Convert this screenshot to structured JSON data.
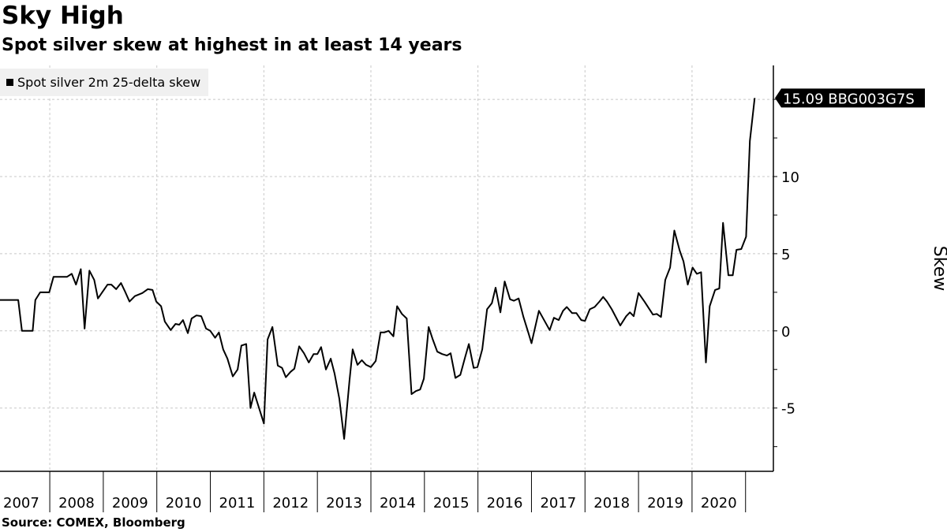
{
  "title": "Sky High",
  "subtitle": "Spot silver skew at highest in at least 14 years",
  "source": "Source: COMEX, Bloomberg",
  "chart_data": {
    "type": "line",
    "title": "Sky High",
    "subtitle": "Spot silver skew at highest in at least 14 years",
    "xlabel": "",
    "ylabel": "Skew",
    "legend": {
      "position": "top-left",
      "entries": [
        "Spot silver 2m 25-delta skew"
      ]
    },
    "last_value_label": "15.09 BBG003G7S",
    "xlim": [
      2007.07,
      2021.52
    ],
    "ylim": [
      -9.1,
      17.2
    ],
    "y_ticks": [
      -5,
      0,
      5,
      10
    ],
    "y_tick_labels": [
      "-5",
      "0",
      "5",
      "10"
    ],
    "y_gridlines": [
      -5,
      0,
      5,
      10,
      15
    ],
    "x_gridlines": [
      2008,
      2010,
      2012,
      2014,
      2016,
      2018,
      2020
    ],
    "x_tick_labels": [
      "2007",
      "2008",
      "2009",
      "2010",
      "2011",
      "2012",
      "2013",
      "2014",
      "2015",
      "2016",
      "2017",
      "2018",
      "2019",
      "2020"
    ],
    "grid": true,
    "line_color": "#000000",
    "series": [
      {
        "name": "Spot silver 2m 25-delta skew",
        "points": [
          [
            2007.07,
            2.0
          ],
          [
            2007.41,
            2.0
          ],
          [
            2007.48,
            0
          ],
          [
            2007.68,
            0
          ],
          [
            2007.73,
            2.0
          ],
          [
            2007.82,
            2.5
          ],
          [
            2007.99,
            2.5
          ],
          [
            2008.07,
            3.5
          ],
          [
            2008.32,
            3.5
          ],
          [
            2008.41,
            3.7
          ],
          [
            2008.49,
            3.0
          ],
          [
            2008.58,
            4.0
          ],
          [
            2008.65,
            0.15
          ],
          [
            2008.74,
            3.9
          ],
          [
            2008.83,
            3.3
          ],
          [
            2008.9,
            2.1
          ],
          [
            2009.08,
            3.0
          ],
          [
            2009.15,
            3.0
          ],
          [
            2009.24,
            2.7
          ],
          [
            2009.33,
            3.1
          ],
          [
            2009.4,
            2.6
          ],
          [
            2009.49,
            1.9
          ],
          [
            2009.59,
            2.25
          ],
          [
            2009.73,
            2.45
          ],
          [
            2009.83,
            2.7
          ],
          [
            2009.92,
            2.65
          ],
          [
            2009.99,
            1.9
          ],
          [
            2010.08,
            1.6
          ],
          [
            2010.15,
            0.6
          ],
          [
            2010.26,
            0.05
          ],
          [
            2010.35,
            0.45
          ],
          [
            2010.42,
            0.4
          ],
          [
            2010.49,
            0.7
          ],
          [
            2010.58,
            -0.15
          ],
          [
            2010.65,
            0.8
          ],
          [
            2010.74,
            1.0
          ],
          [
            2010.83,
            0.95
          ],
          [
            2010.92,
            0.15
          ],
          [
            2011.0,
            0
          ],
          [
            2011.09,
            -0.45
          ],
          [
            2011.16,
            -0.1
          ],
          [
            2011.24,
            -1.2
          ],
          [
            2011.32,
            -1.8
          ],
          [
            2011.42,
            -2.95
          ],
          [
            2011.51,
            -2.5
          ],
          [
            2011.58,
            -0.95
          ],
          [
            2011.67,
            -0.85
          ],
          [
            2011.75,
            -5.0
          ],
          [
            2011.82,
            -4.0
          ],
          [
            2012.0,
            -6.0
          ],
          [
            2012.07,
            -0.55
          ],
          [
            2012.16,
            0.25
          ],
          [
            2012.26,
            -2.25
          ],
          [
            2012.34,
            -2.4
          ],
          [
            2012.41,
            -3.0
          ],
          [
            2012.5,
            -2.65
          ],
          [
            2012.57,
            -2.45
          ],
          [
            2012.66,
            -1.0
          ],
          [
            2012.75,
            -1.45
          ],
          [
            2012.84,
            -2.05
          ],
          [
            2012.93,
            -1.5
          ],
          [
            2013.0,
            -1.5
          ],
          [
            2013.07,
            -1.05
          ],
          [
            2013.16,
            -2.5
          ],
          [
            2013.25,
            -1.8
          ],
          [
            2013.32,
            -2.75
          ],
          [
            2013.41,
            -4.4
          ],
          [
            2013.5,
            -7.0
          ],
          [
            2013.6,
            -3.2
          ],
          [
            2013.66,
            -1.2
          ],
          [
            2013.75,
            -2.2
          ],
          [
            2013.83,
            -1.9
          ],
          [
            2013.91,
            -2.2
          ],
          [
            2014.0,
            -2.35
          ],
          [
            2014.09,
            -1.95
          ],
          [
            2014.18,
            -0.1
          ],
          [
            2014.25,
            -0.1
          ],
          [
            2014.33,
            0
          ],
          [
            2014.42,
            -0.35
          ],
          [
            2014.49,
            1.6
          ],
          [
            2014.58,
            1.1
          ],
          [
            2014.67,
            0.8
          ],
          [
            2014.76,
            -4.1
          ],
          [
            2014.84,
            -3.9
          ],
          [
            2014.92,
            -3.8
          ],
          [
            2014.99,
            -3.1
          ],
          [
            2015.08,
            0.25
          ],
          [
            2015.15,
            -0.5
          ],
          [
            2015.24,
            -1.35
          ],
          [
            2015.33,
            -1.5
          ],
          [
            2015.42,
            -1.6
          ],
          [
            2015.49,
            -1.45
          ],
          [
            2015.58,
            -3.05
          ],
          [
            2015.67,
            -2.85
          ],
          [
            2015.76,
            -1.7
          ],
          [
            2015.83,
            -0.85
          ],
          [
            2015.92,
            -2.4
          ],
          [
            2015.99,
            -2.35
          ],
          [
            2016.08,
            -1.2
          ],
          [
            2016.17,
            1.4
          ],
          [
            2016.26,
            1.8
          ],
          [
            2016.33,
            2.8
          ],
          [
            2016.42,
            1.2
          ],
          [
            2016.5,
            3.2
          ],
          [
            2016.6,
            2.05
          ],
          [
            2016.67,
            1.95
          ],
          [
            2016.76,
            2.1
          ],
          [
            2016.85,
            0.9
          ],
          [
            2016.94,
            -0.1
          ],
          [
            2017.0,
            -0.8
          ],
          [
            2017.14,
            1.3
          ],
          [
            2017.34,
            0.05
          ],
          [
            2017.42,
            0.85
          ],
          [
            2017.51,
            0.7
          ],
          [
            2017.59,
            1.3
          ],
          [
            2017.66,
            1.55
          ],
          [
            2017.76,
            1.15
          ],
          [
            2017.84,
            1.15
          ],
          [
            2017.93,
            0.7
          ],
          [
            2018.0,
            0.65
          ],
          [
            2018.09,
            1.4
          ],
          [
            2018.18,
            1.55
          ],
          [
            2018.27,
            1.9
          ],
          [
            2018.34,
            2.2
          ],
          [
            2018.41,
            1.9
          ],
          [
            2018.5,
            1.4
          ],
          [
            2018.66,
            0.35
          ],
          [
            2018.77,
            0.95
          ],
          [
            2018.84,
            1.2
          ],
          [
            2018.91,
            0.95
          ],
          [
            2019.0,
            2.45
          ],
          [
            2019.11,
            1.9
          ],
          [
            2019.27,
            1.05
          ],
          [
            2019.34,
            1.1
          ],
          [
            2019.42,
            0.9
          ],
          [
            2019.5,
            3.3
          ],
          [
            2019.59,
            4.1
          ],
          [
            2019.67,
            6.5
          ],
          [
            2019.77,
            5.2
          ],
          [
            2019.84,
            4.5
          ],
          [
            2019.92,
            3.0
          ],
          [
            2020.01,
            4.1
          ],
          [
            2020.09,
            3.7
          ],
          [
            2020.17,
            3.8
          ],
          [
            2020.26,
            -2.05
          ],
          [
            2020.33,
            1.6
          ],
          [
            2020.43,
            2.65
          ],
          [
            2020.51,
            2.75
          ],
          [
            2020.58,
            7.0
          ],
          [
            2020.68,
            3.6
          ],
          [
            2020.76,
            3.6
          ],
          [
            2020.83,
            5.25
          ],
          [
            2020.92,
            5.3
          ],
          [
            2021.01,
            6.1
          ],
          [
            2021.08,
            12.3
          ],
          [
            2021.17,
            15.09
          ]
        ]
      }
    ]
  }
}
